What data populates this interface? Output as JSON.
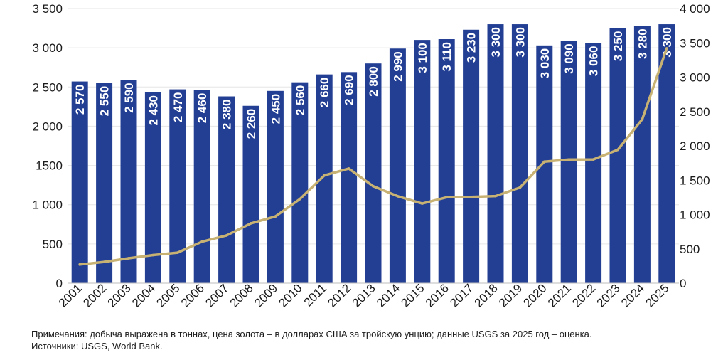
{
  "chart_data": {
    "type": "bar",
    "categories": [
      "2001",
      "2002",
      "2003",
      "2004",
      "2005",
      "2006",
      "2007",
      "2008",
      "2009",
      "2010",
      "2011",
      "2012",
      "2013",
      "2014",
      "2015",
      "2016",
      "2017",
      "2018",
      "2019",
      "2020",
      "2021",
      "2022",
      "2023",
      "2024",
      "2025"
    ],
    "series": [
      {
        "type": "bar",
        "axis": "left",
        "values": [
          2570,
          2550,
          2590,
          2430,
          2470,
          2460,
          2380,
          2260,
          2450,
          2560,
          2660,
          2690,
          2800,
          2990,
          3100,
          3110,
          3230,
          3300,
          3300,
          3030,
          3090,
          3060,
          3250,
          3280,
          3300
        ],
        "labels": [
          "2 570",
          "2 550",
          "2 590",
          "2 430",
          "2 470",
          "2 460",
          "2 380",
          "2 260",
          "2 450",
          "2 560",
          "2 660",
          "2 690",
          "2 800",
          "2 990",
          "3 100",
          "3 110",
          "3 230",
          "3 300",
          "3 300",
          "3 030",
          "3 090",
          "3 060",
          "3 250",
          "3 280",
          "3 300"
        ],
        "color": "#233f94"
      },
      {
        "type": "line",
        "axis": "right",
        "values": [
          271,
          310,
          363,
          409,
          445,
          604,
          695,
          872,
          972,
          1225,
          1569,
          1669,
          1411,
          1266,
          1160,
          1251,
          1257,
          1268,
          1393,
          1770,
          1800,
          1802,
          1943,
          2388,
          3420
        ],
        "color": "#c8b273"
      }
    ],
    "y_left": {
      "ylim": [
        0,
        3500
      ],
      "ticks": [
        0,
        500,
        1000,
        1500,
        2000,
        2500,
        3000,
        3500
      ],
      "tick_labels": [
        "0",
        "500",
        "1 000",
        "1500",
        "2 000",
        "2 500",
        "3 000",
        "3 500"
      ]
    },
    "y_right": {
      "ylim": [
        0,
        4000
      ],
      "ticks": [
        0,
        500,
        1000,
        1500,
        2000,
        2500,
        3000,
        3500,
        4000
      ],
      "tick_labels": [
        "0",
        "500",
        "1 000",
        "1 500",
        "2 000",
        "2 500",
        "3 000",
        "3 500",
        "4 000"
      ]
    },
    "grid": true,
    "legend": "none"
  },
  "footnotes": {
    "note": "Примечания: добыча выражена в тоннах, цена золота – в долларах США за тройскую унцию; данные USGS за 2025 год – оценка.",
    "sources": "Источники: USGS, World Bank."
  }
}
